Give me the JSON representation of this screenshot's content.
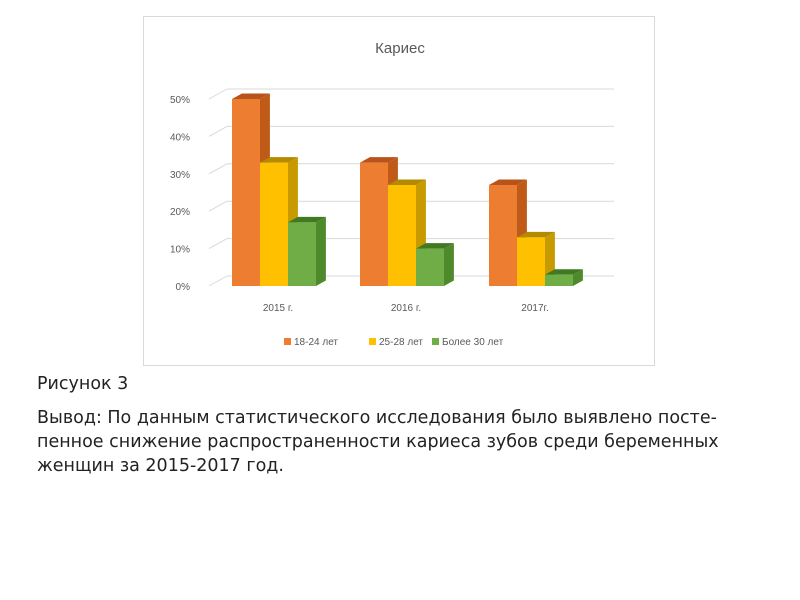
{
  "chart_data": {
    "type": "bar",
    "title": "Кариес",
    "categories": [
      "2015 г.",
      "2016 г.",
      "2017г."
    ],
    "series": [
      {
        "name": "18-24 лет",
        "values": [
          50,
          33,
          27
        ],
        "color": "#ed7d31",
        "side": "#c05a18",
        "top": "#b8541a"
      },
      {
        "name": "25-28 лет",
        "values": [
          33,
          27,
          13
        ],
        "color": "#ffc000",
        "side": "#c79a00",
        "top": "#b38a00"
      },
      {
        "name": "Более 30 лет",
        "values": [
          17,
          10,
          3
        ],
        "color": "#70ad47",
        "side": "#4e8a2c",
        "top": "#3f7a22"
      }
    ],
    "y_ticks": [
      "0%",
      "10%",
      "20%",
      "30%",
      "40%",
      "50%"
    ],
    "ylim": [
      0,
      50
    ],
    "y_unit": "%",
    "grid": true,
    "legend_position": "bottom"
  },
  "caption": "Рисунок 3",
  "conclusion": "Вывод: По данным статистического исследования было выявлено посте-пенное снижение распространенности кариеса зубов среди беременных женщин за 2015-2017 год."
}
